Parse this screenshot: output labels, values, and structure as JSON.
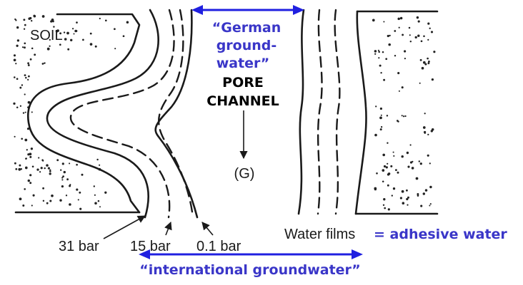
{
  "labels": {
    "soil": "SOIL",
    "german_line1": "“German",
    "german_line2": "ground-",
    "german_line3": "water”",
    "pore_line1": "PORE",
    "pore_line2": "CHANNEL",
    "gravity": "(G)",
    "bar31": "31 bar",
    "bar15": "15 bar",
    "bar01": "0.1 bar",
    "water_films": "Water films",
    "adhesive": "= adhesive water",
    "international": "“international groundwater”"
  },
  "colors": {
    "annotation_blue": "#3a36c8",
    "arrow_blue": "#2020e0",
    "ink": "#1a1a1a"
  }
}
